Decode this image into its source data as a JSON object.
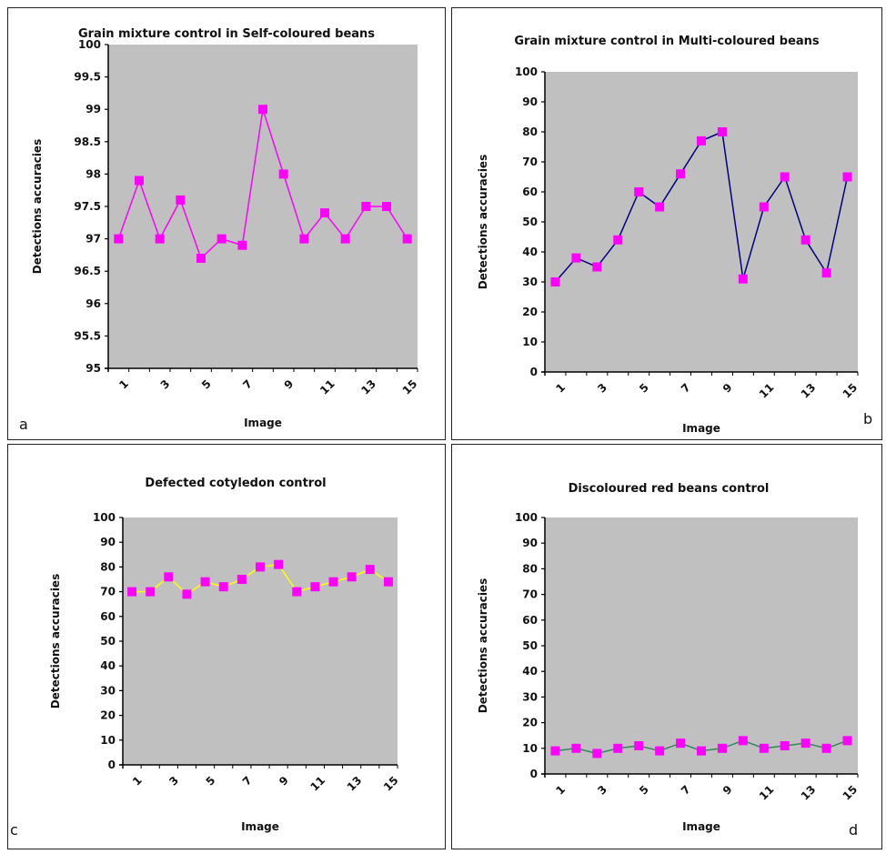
{
  "chart_data": [
    {
      "id": "a",
      "type": "line",
      "title": "Grain mixture control in Self-coloured beans",
      "xlabel": "Image",
      "ylabel": "Detections accuracies",
      "panel_letter": "a",
      "categories": [
        1,
        2,
        3,
        4,
        5,
        6,
        7,
        8,
        9,
        10,
        11,
        12,
        13,
        14,
        15
      ],
      "x_tick_labels": [
        "1",
        "3",
        "5",
        "7",
        "9",
        "11",
        "13",
        "15"
      ],
      "y_ticks": [
        "95",
        "95.5",
        "96",
        "96.5",
        "97",
        "97.5",
        "98",
        "98.5",
        "99",
        "99.5",
        "100"
      ],
      "ylim": [
        95,
        100
      ],
      "grid": false,
      "series": [
        {
          "values": [
            97,
            97.9,
            97,
            97.6,
            96.7,
            97,
            96.9,
            99,
            98,
            97,
            97.4,
            97,
            97.5,
            97.5,
            97
          ]
        }
      ],
      "colors": {
        "plot_bg": "#c0c0c0",
        "line": "#ff00ff",
        "marker": "#ff00ff"
      }
    },
    {
      "id": "b",
      "type": "line",
      "title": "Grain mixture control in Multi-coloured beans",
      "xlabel": "Image",
      "ylabel": "Detections accuracies",
      "panel_letter": "b",
      "categories": [
        1,
        2,
        3,
        4,
        5,
        6,
        7,
        8,
        9,
        10,
        11,
        12,
        13,
        14,
        15
      ],
      "x_tick_labels": [
        "1",
        "3",
        "5",
        "7",
        "9",
        "11",
        "13",
        "15"
      ],
      "y_ticks": [
        "0",
        "10",
        "20",
        "30",
        "40",
        "50",
        "60",
        "70",
        "80",
        "90",
        "100"
      ],
      "ylim": [
        0,
        100
      ],
      "grid": false,
      "series": [
        {
          "values": [
            30,
            38,
            35,
            44,
            60,
            55,
            66,
            77,
            80,
            31,
            55,
            65,
            44,
            33,
            65
          ]
        }
      ],
      "colors": {
        "plot_bg": "#c0c0c0",
        "line": "#000080",
        "marker": "#ff00ff"
      }
    },
    {
      "id": "c",
      "type": "line",
      "title": "Defected cotyledon control",
      "xlabel": "Image",
      "ylabel": "Detections accuracies",
      "panel_letter": "c",
      "categories": [
        1,
        2,
        3,
        4,
        5,
        6,
        7,
        8,
        9,
        10,
        11,
        12,
        13,
        14,
        15
      ],
      "x_tick_labels": [
        "1",
        "3",
        "5",
        "7",
        "9",
        "11",
        "13",
        "15"
      ],
      "y_ticks": [
        "0",
        "10",
        "20",
        "30",
        "40",
        "50",
        "60",
        "70",
        "80",
        "90",
        "100"
      ],
      "ylim": [
        0,
        100
      ],
      "grid": false,
      "series": [
        {
          "values": [
            70,
            70,
            76,
            69,
            74,
            72,
            75,
            80,
            81,
            70,
            72,
            74,
            76,
            79,
            74
          ]
        }
      ],
      "colors": {
        "plot_bg": "#c0c0c0",
        "line": "#ffff00",
        "marker": "#ff00ff"
      }
    },
    {
      "id": "d",
      "type": "line",
      "title": "Discoloured red beans control",
      "xlabel": "Image",
      "ylabel": "Detections accuracies",
      "panel_letter": "d",
      "categories": [
        1,
        2,
        3,
        4,
        5,
        6,
        7,
        8,
        9,
        10,
        11,
        12,
        13,
        14,
        15
      ],
      "x_tick_labels": [
        "1",
        "3",
        "5",
        "7",
        "9",
        "11",
        "13",
        "15"
      ],
      "y_ticks": [
        "0",
        "10",
        "20",
        "30",
        "40",
        "50",
        "60",
        "70",
        "80",
        "90",
        "100"
      ],
      "ylim": [
        0,
        100
      ],
      "grid": false,
      "series": [
        {
          "values": [
            9,
            10,
            8,
            10,
            11,
            9,
            12,
            9,
            10,
            13,
            10,
            11,
            12,
            10,
            13
          ]
        }
      ],
      "colors": {
        "plot_bg": "#c0c0c0",
        "line": "#2e8b57",
        "marker": "#ff00ff"
      }
    }
  ]
}
